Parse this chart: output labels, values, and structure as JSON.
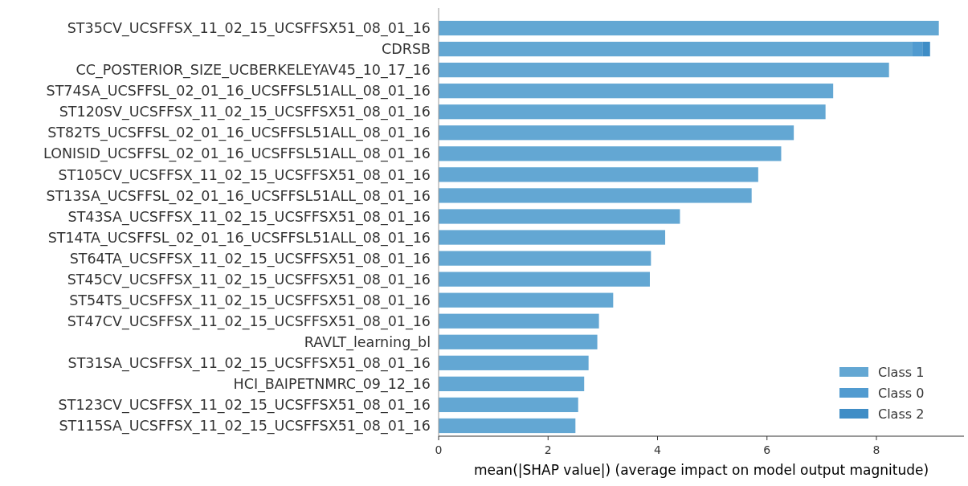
{
  "chart_data": {
    "type": "bar",
    "orientation": "horizontal",
    "stacked": true,
    "xlabel": "mean(|SHAP value|) (average impact on model output magnitude)",
    "categories": [
      "ST35CV_UCSFFSX_11_02_15_UCSFFSX51_08_01_16",
      "CDRSB",
      "CC_POSTERIOR_SIZE_UCBERKELEYAV45_10_17_16",
      "ST74SA_UCSFFSL_02_01_16_UCSFFSL51ALL_08_01_16",
      "ST120SV_UCSFFSX_11_02_15_UCSFFSX51_08_01_16",
      "ST82TS_UCSFFSL_02_01_16_UCSFFSL51ALL_08_01_16",
      "LONISID_UCSFFSL_02_01_16_UCSFFSL51ALL_08_01_16",
      "ST105CV_UCSFFSX_11_02_15_UCSFFSX51_08_01_16",
      "ST13SA_UCSFFSL_02_01_16_UCSFFSL51ALL_08_01_16",
      "ST43SA_UCSFFSX_11_02_15_UCSFFSX51_08_01_16",
      "ST14TA_UCSFFSL_02_01_16_UCSFFSL51ALL_08_01_16",
      "ST64TA_UCSFFSX_11_02_15_UCSFFSX51_08_01_16",
      "ST45CV_UCSFFSX_11_02_15_UCSFFSX51_08_01_16",
      "ST54TS_UCSFFSX_11_02_15_UCSFFSX51_08_01_16",
      "ST47CV_UCSFFSX_11_02_15_UCSFFSX51_08_01_16",
      "RAVLT_learning_bl",
      "ST31SA_UCSFFSX_11_02_15_UCSFFSX51_08_01_16",
      "HCI_BAIPETNMRC_09_12_16",
      "ST123CV_UCSFFSX_11_02_15_UCSFFSX51_08_01_16",
      "ST115SA_UCSFFSX_11_02_15_UCSFFSX51_08_01_16"
    ],
    "series": [
      {
        "name": "Class 1",
        "color": "#63a7d3",
        "values": [
          9.14,
          8.66,
          8.23,
          7.21,
          7.07,
          6.49,
          6.26,
          5.84,
          5.72,
          4.41,
          4.14,
          3.88,
          3.86,
          3.19,
          2.93,
          2.9,
          2.74,
          2.66,
          2.55,
          2.5
        ]
      },
      {
        "name": "Class 0",
        "color": "#519bd0",
        "values": [
          0,
          0.18,
          0,
          0,
          0,
          0,
          0,
          0,
          0,
          0,
          0,
          0,
          0,
          0,
          0,
          0,
          0,
          0,
          0,
          0
        ]
      },
      {
        "name": "Class 2",
        "color": "#3f8dc6",
        "values": [
          0,
          0.14,
          0,
          0,
          0,
          0,
          0,
          0,
          0,
          0,
          0,
          0,
          0,
          0,
          0,
          0,
          0,
          0,
          0,
          0
        ]
      }
    ],
    "xlim": [
      0,
      9.6
    ],
    "xticks": [
      0,
      2,
      4,
      6,
      8
    ],
    "grid": false,
    "legend": "bottom right"
  }
}
